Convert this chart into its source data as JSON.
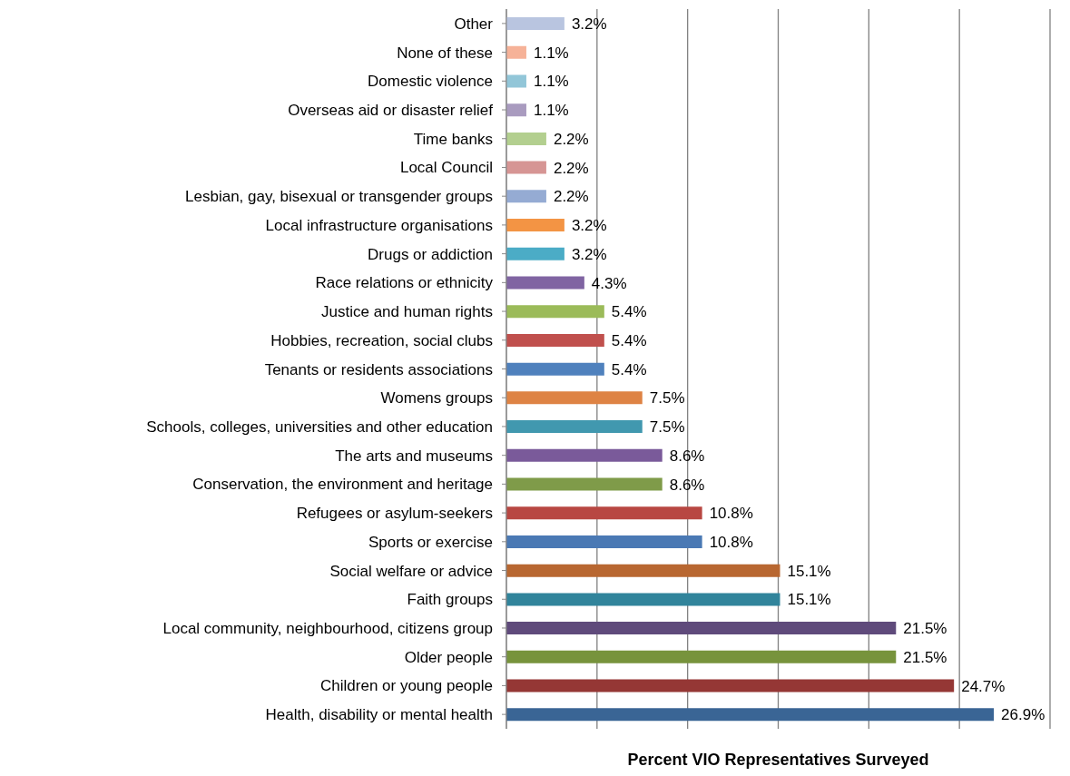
{
  "chart_data": {
    "type": "bar",
    "orientation": "horizontal",
    "xlabel": "Percent VIO Representatives Surveyed",
    "categories": [
      "Other",
      "None of these",
      "Domestic violence",
      "Overseas aid or disaster relief",
      "Time banks",
      "Local Council",
      "Lesbian, gay, bisexual or transgender groups",
      "Local infrastructure organisations",
      "Drugs or addiction",
      "Race relations or ethnicity",
      "Justice and human rights",
      "Hobbies, recreation, social clubs",
      "Tenants or residents associations",
      "Womens groups",
      "Schools, colleges, universities and other education",
      "The arts and museums",
      "Conservation, the environment and heritage",
      "Refugees or asylum-seekers",
      "Sports or exercise",
      "Social welfare or advice",
      "Faith groups",
      "Local community, neighbourhood, citizens group",
      "Older people",
      "Children or young people",
      "Health, disability or mental health"
    ],
    "values": [
      3.2,
      1.1,
      1.1,
      1.1,
      2.2,
      2.2,
      2.2,
      3.2,
      3.2,
      4.3,
      5.4,
      5.4,
      5.4,
      7.5,
      7.5,
      8.6,
      8.6,
      10.8,
      10.8,
      15.1,
      15.1,
      21.5,
      21.5,
      24.7,
      26.9
    ],
    "value_labels": [
      "3.2%",
      "1.1%",
      "1.1%",
      "1.1%",
      "2.2%",
      "2.2%",
      "2.2%",
      "3.2%",
      "3.2%",
      "4.3%",
      "5.4%",
      "5.4%",
      "5.4%",
      "7.5%",
      "7.5%",
      "8.6%",
      "8.6%",
      "10.8%",
      "10.8%",
      "15.1%",
      "15.1%",
      "21.5%",
      "21.5%",
      "24.7%",
      "26.9%"
    ],
    "colors": [
      "#b9c5e0",
      "#f6b298",
      "#92c6d8",
      "#a99bbf",
      "#b3cf8f",
      "#d69594",
      "#95abd3",
      "#f39444",
      "#4bacc6",
      "#8064a2",
      "#9bbb59",
      "#c0504d",
      "#4f81bd",
      "#de8344",
      "#4198af",
      "#7a5a9a",
      "#7f9b49",
      "#b84742",
      "#4a79b4",
      "#b86731",
      "#31849b",
      "#5f4a7b",
      "#77933c",
      "#953735",
      "#3a6595"
    ],
    "xlim": [
      0,
      30
    ],
    "xticks": [
      {
        "value": 0,
        "label": null
      },
      {
        "value": 5,
        "label": null
      },
      {
        "value": 10,
        "label": null
      },
      {
        "value": 15,
        "label": null
      },
      {
        "value": 20,
        "label": null
      },
      {
        "value": 25,
        "label": null
      },
      {
        "value": 30,
        "label": null
      }
    ],
    "grid": "x",
    "tick_labels": "y",
    "legend": false
  }
}
